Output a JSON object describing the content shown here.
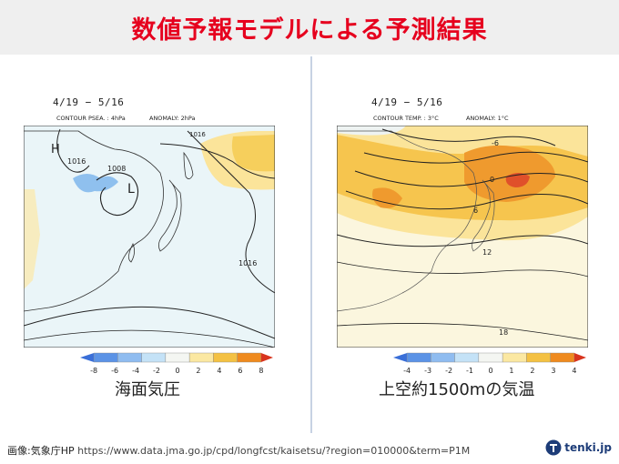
{
  "header": {
    "title": "数値予報モデルによる予測結果"
  },
  "left_panel": {
    "period": "4/19 − 5/16",
    "contour_label": "CONTOUR PSEA. : 4hPa",
    "anomaly_label": "ANOMALY: 2hPa",
    "map_labels": {
      "high": "H",
      "low": "L",
      "c1016_a": "1016",
      "c1008": "1008",
      "c1016_b": "1016",
      "c1016_c": "1016"
    },
    "colorbar_ticks": [
      "-8",
      "-6",
      "-4",
      "-2",
      "0",
      "2",
      "4",
      "6",
      "8"
    ],
    "colorbar_colors": [
      "#3a6fd8",
      "#5b93e6",
      "#8fbcf0",
      "#c4e2f7",
      "#f4f6f2",
      "#fbe8a2",
      "#f4c143",
      "#ef8a1e",
      "#d8341e"
    ],
    "caption": "海面気圧"
  },
  "right_panel": {
    "period": "4/19 − 5/16",
    "contour_label": "CONTOUR TEMP. : 3°C",
    "anomaly_label": "ANOMALY: 1°C",
    "map_labels": {
      "c_neg6": "-6",
      "c0": "0",
      "c6": "6",
      "c12": "12",
      "c18": "18"
    },
    "colorbar_ticks": [
      "-4",
      "-3",
      "-2",
      "-1",
      "0",
      "1",
      "2",
      "3",
      "4"
    ],
    "colorbar_colors": [
      "#3a6fd8",
      "#5b93e6",
      "#8fbcf0",
      "#c4e2f7",
      "#f4f6f2",
      "#fbe8a2",
      "#f4c143",
      "#ef8a1e",
      "#d8341e"
    ],
    "caption": "上空約1500mの気温"
  },
  "footer": {
    "credit_label": "画像:気象庁HP",
    "credit_url": "https://www.data.jma.go.jp/cpd/longfcst/kaisetsu/?region=010000&term=P1M",
    "brand": "tenki.jp"
  }
}
